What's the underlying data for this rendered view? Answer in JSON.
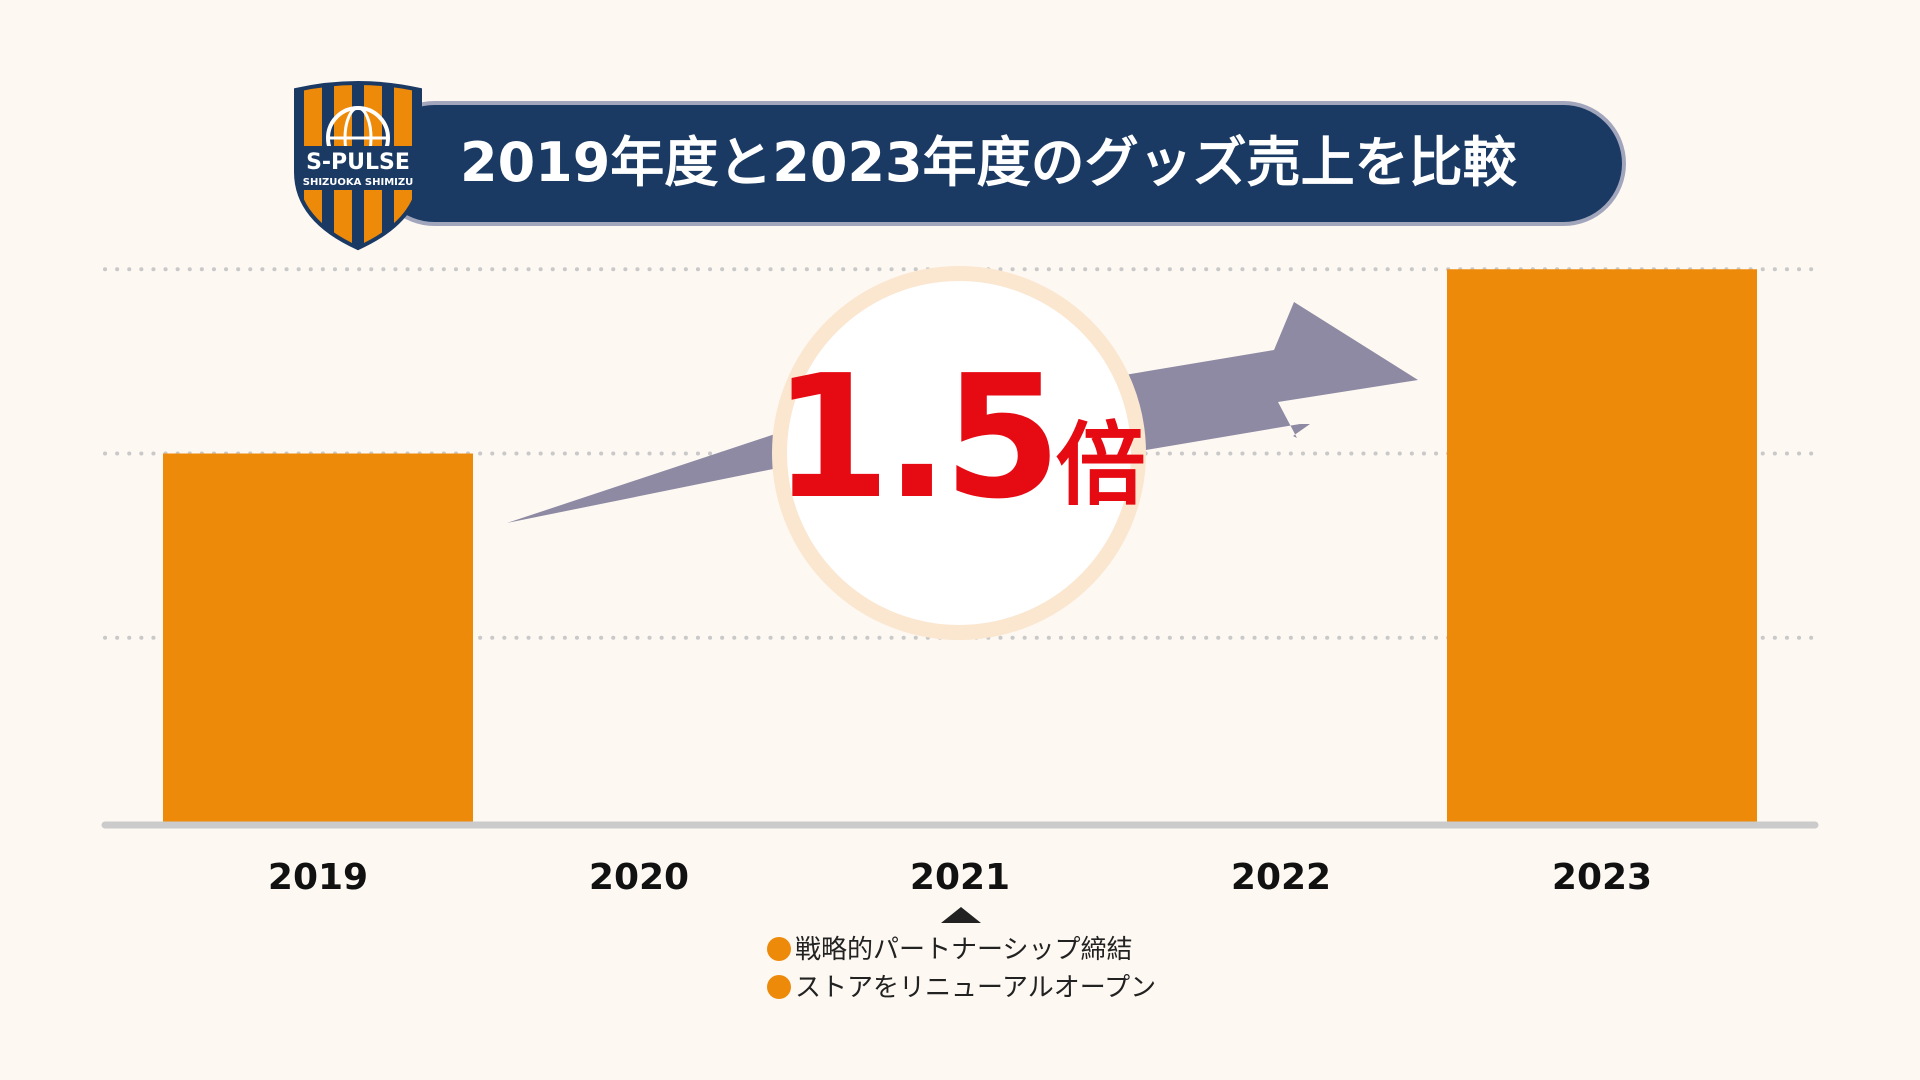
{
  "title": "2019年度と2023年度のグッズ売上を比較",
  "logo": {
    "name": "s-pulse-crest",
    "text_top": "S-PULSE",
    "text_bottom": "SHIZUOKA SHIMIZU",
    "colors": {
      "orange": "#ee8a0a",
      "navy": "#1a3a64"
    }
  },
  "badge": {
    "value": "1.5",
    "unit": "倍",
    "color": "#e60a13"
  },
  "notes": {
    "year": "2021",
    "items": [
      "戦略的パートナーシップ締結",
      "ストアをリニューアルオープン"
    ],
    "bullet_color": "#ee8a0a"
  },
  "chart_data": {
    "type": "bar",
    "categories": [
      "2019",
      "2020",
      "2021",
      "2022",
      "2023"
    ],
    "values": [
      1.0,
      null,
      null,
      null,
      1.5
    ],
    "ylim": [
      0,
      2.0
    ],
    "grid": true,
    "grid_values": [
      0.5,
      1.0,
      1.5
    ],
    "bar_color": "#ee8a0a",
    "arrow_color": "#8e8aa3"
  }
}
